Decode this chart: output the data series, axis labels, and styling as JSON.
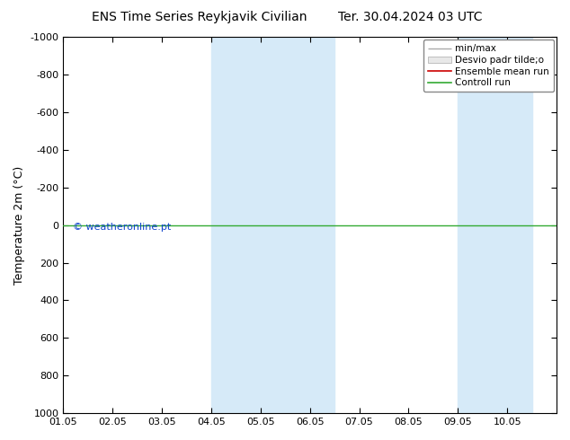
{
  "title_left": "ENS Time Series Reykjavik Civilian",
  "title_right": "Ter. 30.04.2024 03 UTC",
  "ylabel": "Temperature 2m (°C)",
  "ylim_top": -1000,
  "ylim_bottom": 1000,
  "yticks": [
    -1000,
    -800,
    -600,
    -400,
    -200,
    0,
    200,
    400,
    600,
    800,
    1000
  ],
  "xlim_start": 0.0,
  "xlim_end": 10.0,
  "xtick_positions": [
    0,
    1,
    2,
    3,
    4,
    5,
    6,
    7,
    8,
    9
  ],
  "xtick_labels": [
    "01.05",
    "02.05",
    "03.05",
    "04.05",
    "05.05",
    "06.05",
    "07.05",
    "08.05",
    "09.05",
    "10.05"
  ],
  "shaded_bands": [
    {
      "xmin": 3.0,
      "xmax": 5.5
    },
    {
      "xmin": 8.0,
      "xmax": 9.5
    }
  ],
  "shade_color": "#d6eaf8",
  "green_line_y": 0,
  "green_line_color": "#33aa33",
  "red_line_color": "#cc0000",
  "legend_labels": [
    "min/max",
    "Desvio padr tilde;o",
    "Ensemble mean run",
    "Controll run"
  ],
  "legend_line_colors": [
    "#aaaaaa",
    "#cccccc",
    "#cc0000",
    "#33aa33"
  ],
  "copyright_text": "© weatheronline.pt",
  "copyright_color": "#1144cc",
  "bg_color": "#ffffff",
  "plot_bg_color": "#ffffff",
  "title_fontsize": 10,
  "axis_label_fontsize": 9,
  "tick_fontsize": 8,
  "legend_fontsize": 7.5,
  "copyright_fontsize": 8
}
